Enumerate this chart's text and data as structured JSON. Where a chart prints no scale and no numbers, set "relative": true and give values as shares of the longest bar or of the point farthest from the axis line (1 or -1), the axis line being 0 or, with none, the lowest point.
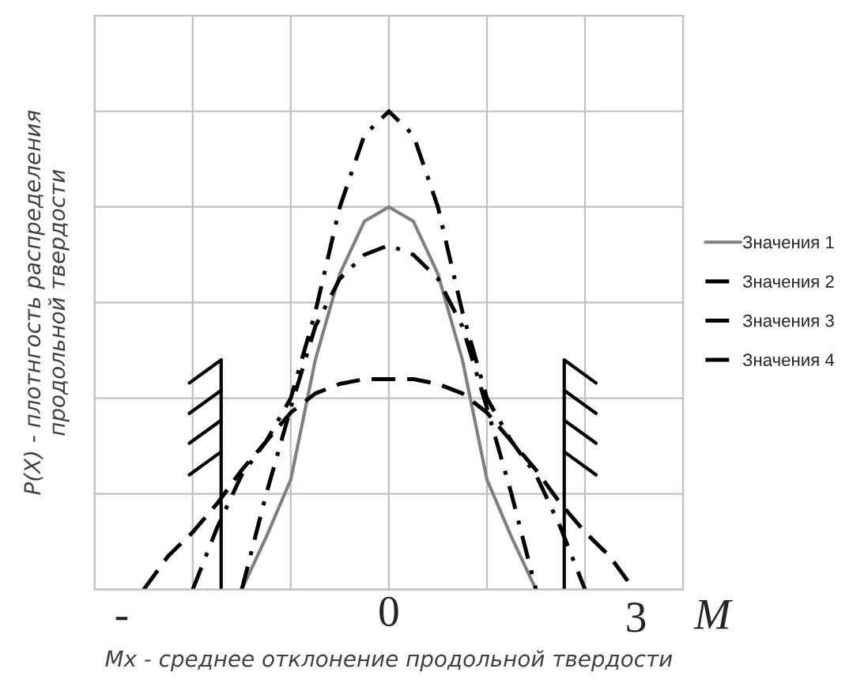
{
  "chart_data": {
    "type": "line",
    "relative": true,
    "xlabel": "Mx - среднее отклонение продольной твердости",
    "ylabel": "P(X) - плотнгость распределения\nпродольной твердости",
    "categories": [
      null,
      null,
      null,
      null,
      null,
      null,
      null,
      null,
      null,
      null,
      null,
      null,
      null,
      null,
      null,
      null,
      null,
      null,
      null,
      null,
      null,
      null,
      null,
      null,
      null
    ],
    "grid": true,
    "legend": "right",
    "annotations": [
      "-",
      "0",
      "3",
      "M"
    ],
    "series": [
      {
        "name": "Значения 1",
        "color": "#808080",
        "line_style": "solid",
        "values": [
          null,
          null,
          null,
          null,
          null,
          null,
          0,
          0.11,
          0.23,
          0.48,
          0.66,
          0.77,
          0.8,
          0.77,
          0.66,
          0.48,
          0.23,
          0.11,
          0,
          null,
          null,
          null,
          null,
          null,
          null
        ]
      },
      {
        "name": "Значения 2",
        "color": "#000000",
        "line_style": "dashdot",
        "values": [
          null,
          null,
          null,
          null,
          null,
          null,
          0,
          0.2,
          0.38,
          0.55,
          0.65,
          0.7,
          0.72,
          0.7,
          0.65,
          0.55,
          0.38,
          0.2,
          0,
          null,
          null,
          null,
          null,
          null,
          null
        ]
      },
      {
        "name": "Значения 3",
        "color": "#000000",
        "line_style": "dashdot",
        "values": [
          null,
          null,
          null,
          null,
          0,
          0.13,
          0.24,
          0.31,
          0.4,
          0.58,
          0.8,
          0.95,
          1,
          0.95,
          0.8,
          0.58,
          0.4,
          0.31,
          0.24,
          0.13,
          0,
          null,
          null,
          null,
          null
        ]
      },
      {
        "name": "Значения 4",
        "color": "#000000",
        "line_style": "dashed",
        "values": [
          null,
          null,
          0,
          0.07,
          0.12,
          0.18,
          0.25,
          0.31,
          0.37,
          0.41,
          0.43,
          0.44,
          0.44,
          0.44,
          0.43,
          0.41,
          0.37,
          0.31,
          0.25,
          0.18,
          0.12,
          0.07,
          0,
          null,
          null
        ]
      }
    ]
  }
}
